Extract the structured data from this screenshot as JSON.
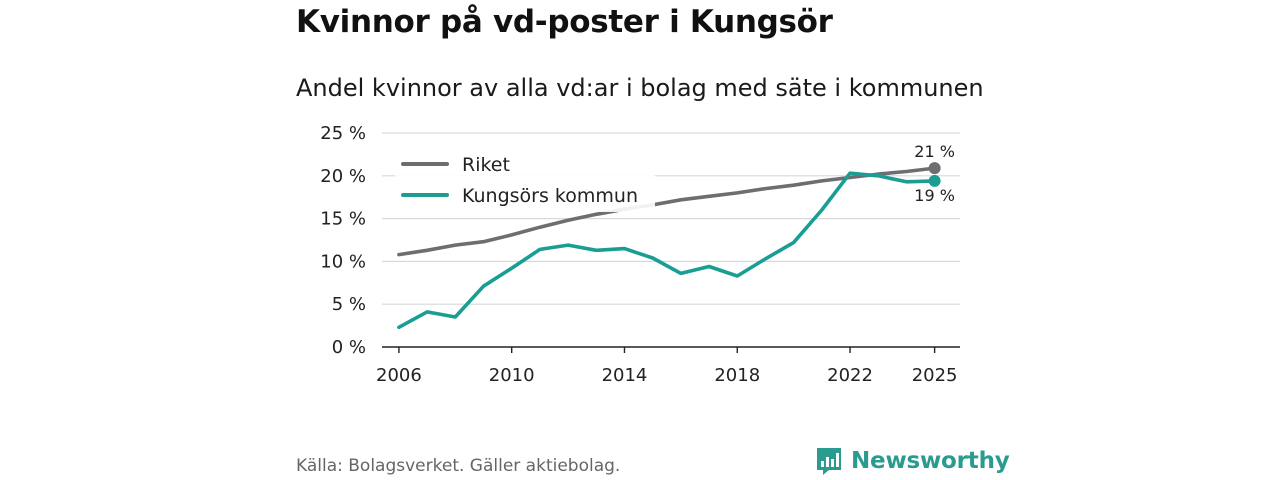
{
  "chart_data": {
    "type": "line",
    "title": "Kvinnor på vd-poster i Kungsör",
    "subtitle": "Andel kvinnor av alla vd:ar i bolag med säte i kommunen",
    "ylim": [
      0,
      25
    ],
    "yticks": [
      0,
      5,
      10,
      15,
      20,
      25
    ],
    "ytick_labels": [
      "0 %",
      "5 %",
      "10 %",
      "15 %",
      "20 %",
      "25 %"
    ],
    "xlim": [
      2005.4,
      2025.9
    ],
    "xticks": [
      2006,
      2010,
      2014,
      2018,
      2022,
      2025
    ],
    "xtick_labels": [
      "2006",
      "2010",
      "2014",
      "2018",
      "2022",
      "2025"
    ],
    "x": [
      2006,
      2007,
      2008,
      2009,
      2010,
      2011,
      2012,
      2013,
      2014,
      2015,
      2016,
      2017,
      2018,
      2019,
      2020,
      2021,
      2022,
      2023,
      2024,
      2025
    ],
    "series": [
      {
        "name": "Riket",
        "color": "#6e6d72",
        "values": [
          10.8,
          11.3,
          11.9,
          12.3,
          13.1,
          14.0,
          14.8,
          15.5,
          16.1,
          16.6,
          17.2,
          17.6,
          18.0,
          18.5,
          18.9,
          19.4,
          19.8,
          20.2,
          20.5,
          20.9
        ],
        "end_label": "21 %"
      },
      {
        "name": "Kungsörs kommun",
        "color": "#1a9e94",
        "values": [
          2.3,
          4.1,
          3.5,
          7.1,
          9.2,
          11.4,
          11.9,
          11.3,
          11.5,
          10.4,
          8.6,
          9.4,
          8.3,
          10.3,
          12.2,
          16.0,
          20.3,
          20.0,
          19.3,
          19.4
        ],
        "end_label": "19 %"
      }
    ]
  },
  "footer": {
    "source": "Källa: Bolagsverket. Gäller aktiebolag.",
    "brand": "Newsworthy",
    "brand_color": "#2a9b8f"
  }
}
